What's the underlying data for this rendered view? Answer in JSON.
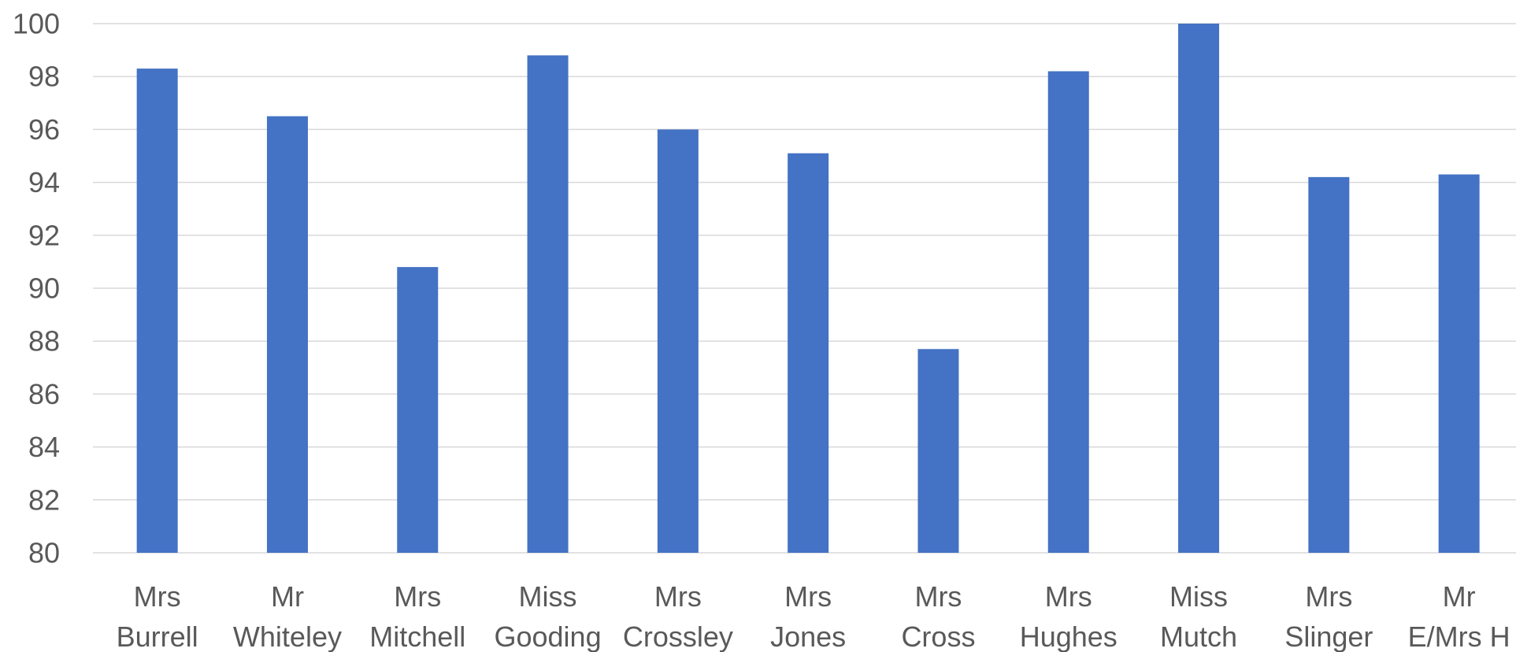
{
  "chart_data": {
    "type": "bar",
    "categories": [
      [
        "Mrs",
        "Burrell"
      ],
      [
        "Mr",
        "Whiteley"
      ],
      [
        "Mrs",
        "Mitchell"
      ],
      [
        "Miss",
        "Gooding"
      ],
      [
        "Mrs",
        "Crossley"
      ],
      [
        "Mrs",
        "Jones"
      ],
      [
        "Mrs",
        "Cross"
      ],
      [
        "Mrs",
        "Hughes"
      ],
      [
        "Miss",
        "Mutch"
      ],
      [
        "Mrs",
        "Slinger"
      ],
      [
        "Mr",
        "E/Mrs H"
      ]
    ],
    "values": [
      98.3,
      96.5,
      90.8,
      98.8,
      96.0,
      95.1,
      87.7,
      98.2,
      100.0,
      94.2,
      94.3
    ],
    "ylim": [
      80,
      100
    ],
    "yticks": [
      "80",
      "82",
      "84",
      "86",
      "88",
      "90",
      "92",
      "94",
      "96",
      "98",
      "100"
    ],
    "grid": true,
    "colors": {
      "bar": "#4472C4",
      "grid": "#D9D9D9",
      "text": "#595959"
    }
  }
}
